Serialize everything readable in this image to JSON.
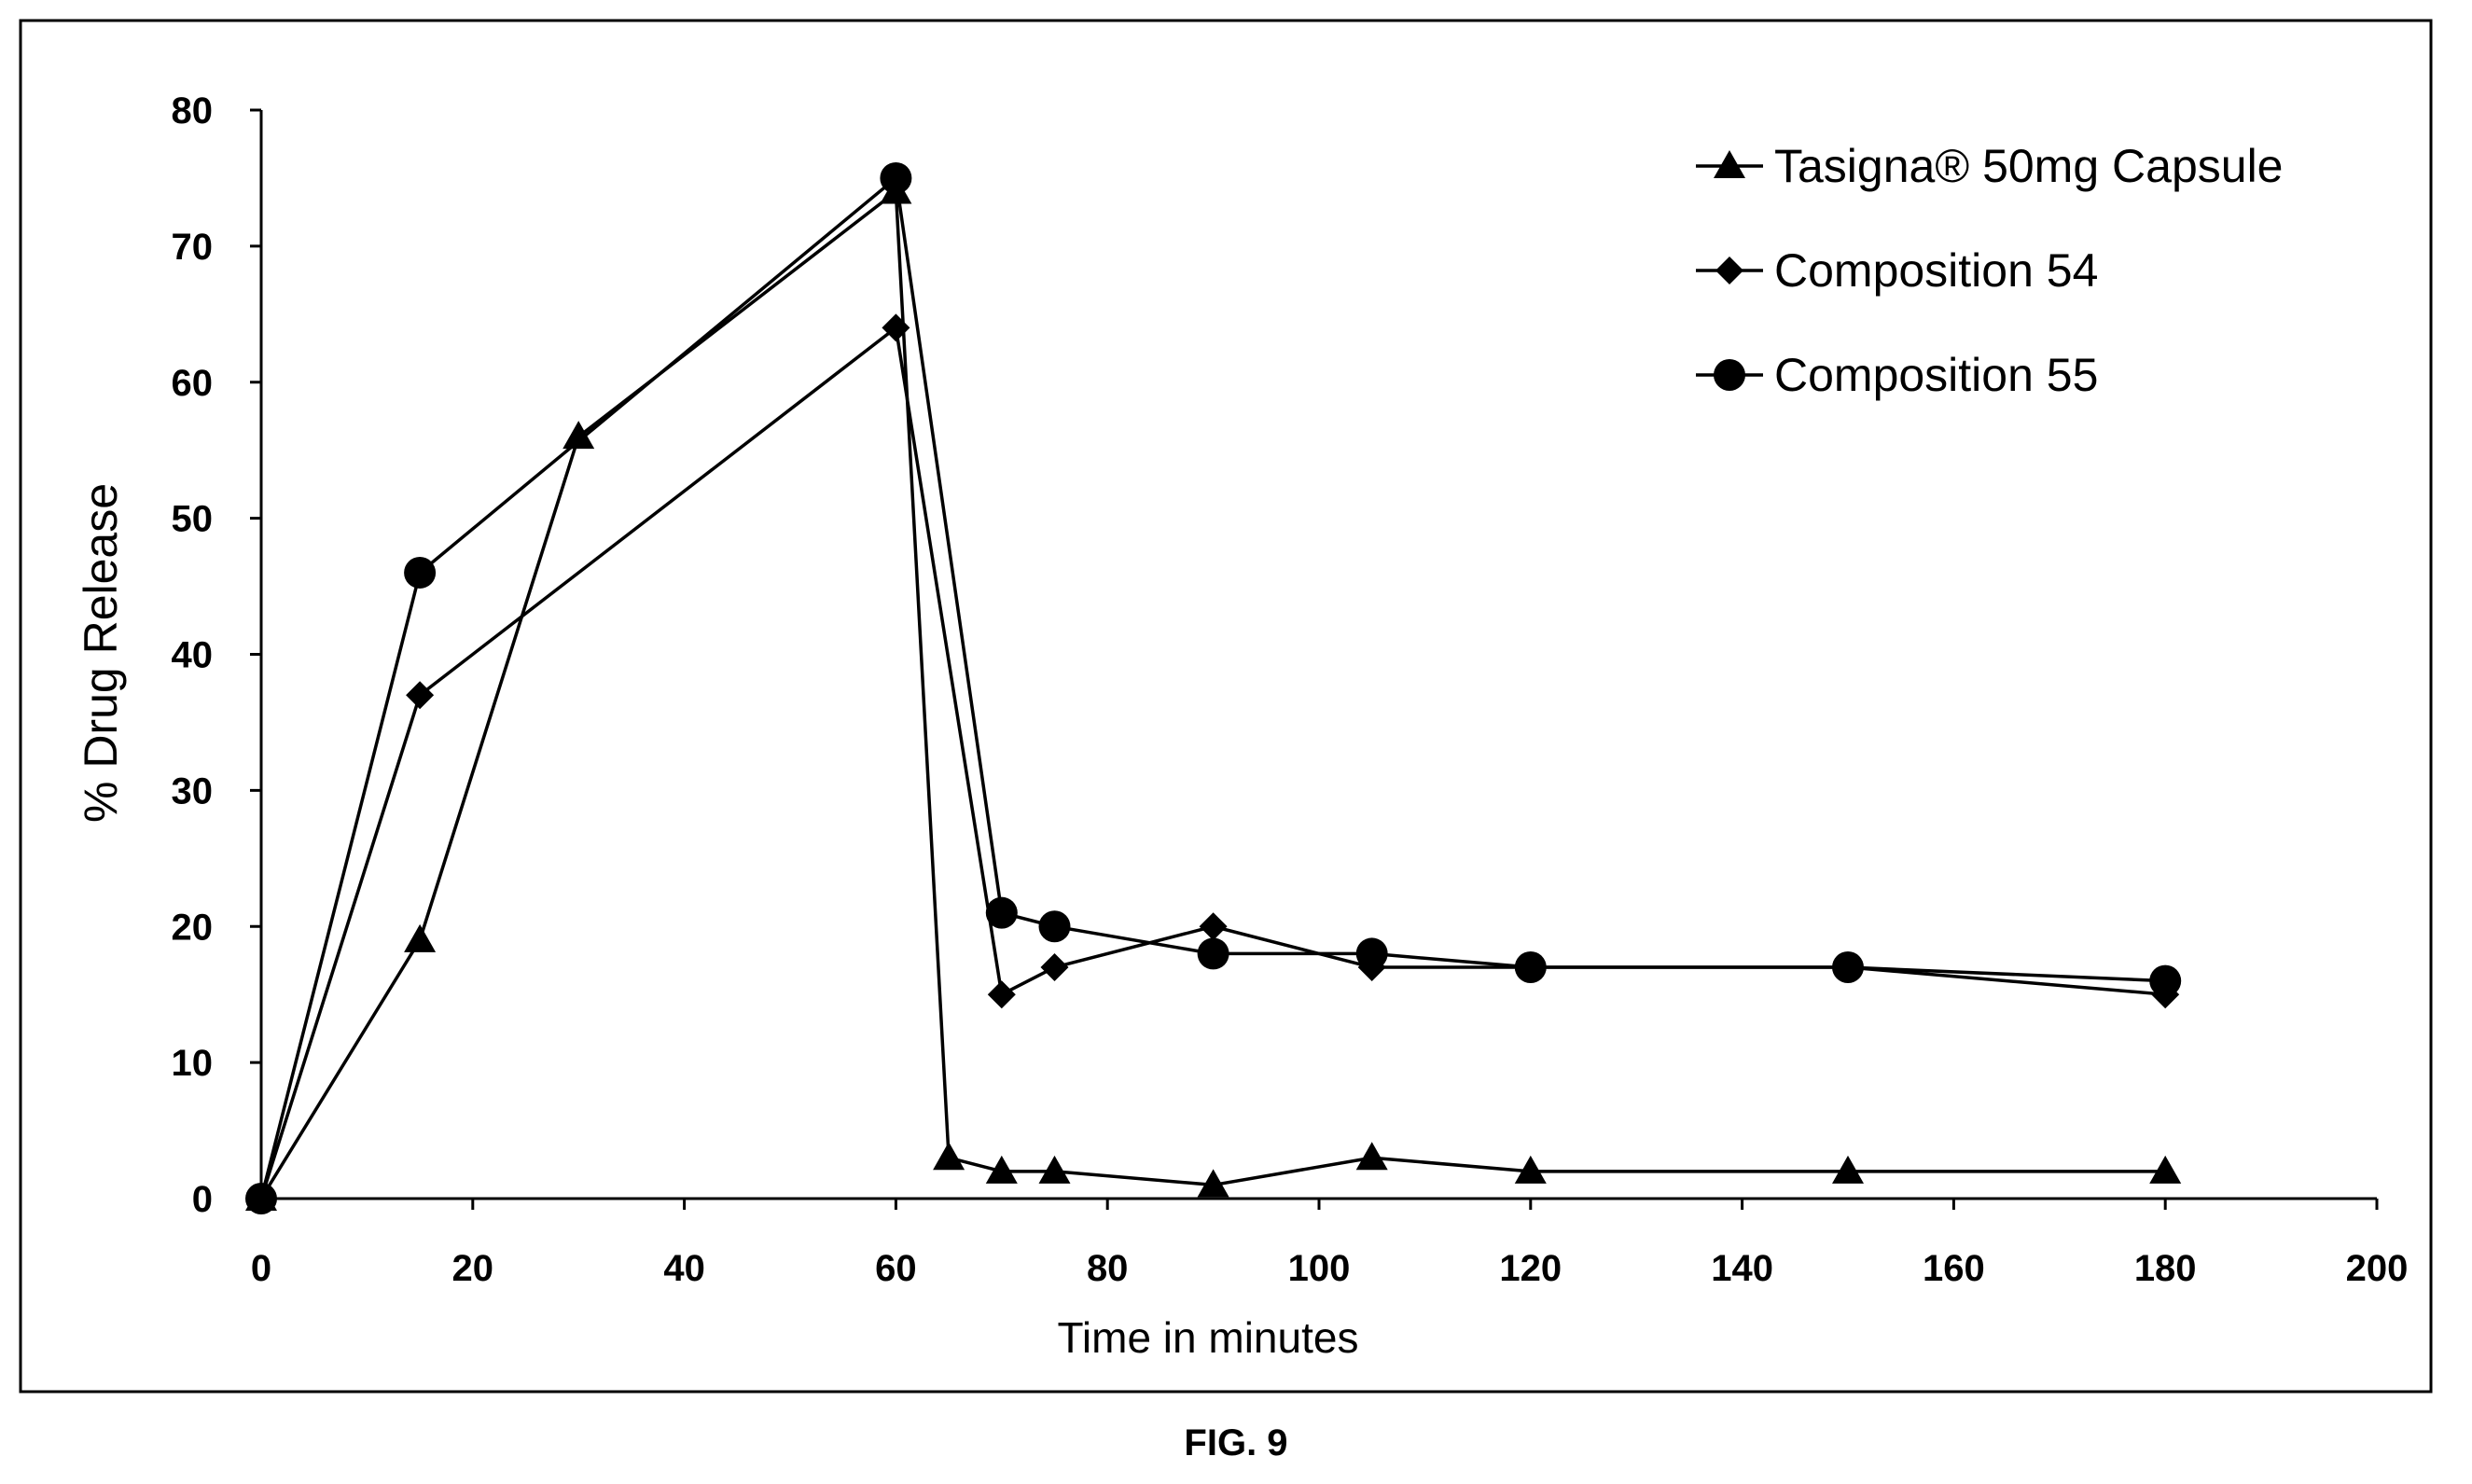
{
  "figure": {
    "caption": "FIG. 9"
  },
  "chart_data": {
    "type": "line",
    "xlabel": "Time in minutes",
    "ylabel": "% Drug Release",
    "xlim": [
      0,
      200
    ],
    "ylim": [
      0,
      80
    ],
    "x_ticks": [
      0,
      20,
      40,
      60,
      80,
      100,
      120,
      140,
      160,
      180,
      200
    ],
    "y_ticks": [
      0,
      10,
      20,
      30,
      40,
      50,
      60,
      70,
      80
    ],
    "grid": false,
    "legend_position": "top-right",
    "line_color": "#000000",
    "series": [
      {
        "name": "Tasigna® 50mg Capsule",
        "marker": "triangle",
        "points": [
          [
            0,
            0
          ],
          [
            15,
            19
          ],
          [
            30,
            56
          ],
          [
            60,
            74
          ],
          [
            65,
            3
          ],
          [
            70,
            2
          ],
          [
            75,
            2
          ],
          [
            90,
            1
          ],
          [
            105,
            3
          ],
          [
            120,
            2
          ],
          [
            150,
            2
          ],
          [
            180,
            2
          ]
        ]
      },
      {
        "name": "Composition 54",
        "marker": "diamond",
        "points": [
          [
            0,
            0
          ],
          [
            15,
            37
          ],
          [
            60,
            64
          ],
          [
            70,
            15
          ],
          [
            75,
            17
          ],
          [
            90,
            20
          ],
          [
            105,
            17
          ],
          [
            120,
            17
          ],
          [
            150,
            17
          ],
          [
            180,
            15
          ]
        ]
      },
      {
        "name": "Composition 55",
        "marker": "circle",
        "points": [
          [
            0,
            0
          ],
          [
            15,
            46
          ],
          [
            60,
            75
          ],
          [
            70,
            21
          ],
          [
            75,
            20
          ],
          [
            90,
            18
          ],
          [
            105,
            18
          ],
          [
            120,
            17
          ],
          [
            150,
            17
          ],
          [
            180,
            16
          ]
        ]
      }
    ]
  }
}
